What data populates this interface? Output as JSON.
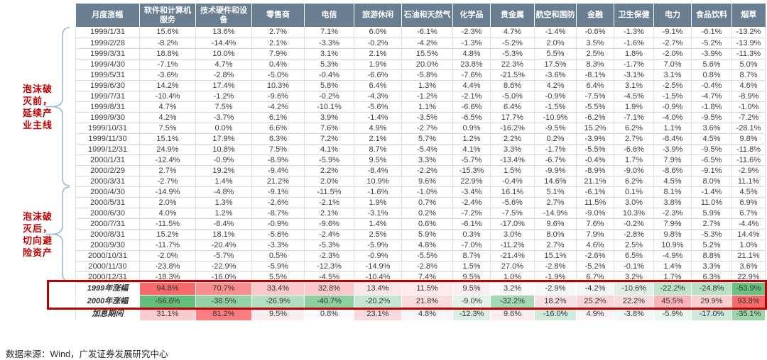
{
  "chart_data": {
    "type": "table",
    "columns": [
      "月度涨幅",
      "软件和计算机服务",
      "技术硬件和设备",
      "零售商",
      "电信",
      "旅游休闲",
      "石油和天然气",
      "化学品",
      "贵金属",
      "航空和国防",
      "金融",
      "卫生保健",
      "电力",
      "食品饮料",
      "烟草"
    ],
    "value_format": "percent_one_decimal",
    "rows": [
      {
        "label": "1999/1/31",
        "values": [
          15.6,
          13.6,
          2.7,
          7.1,
          6.0,
          -6.1,
          -2.3,
          4.7,
          -1.4,
          -0.6,
          -1.3,
          -9.1,
          -6.1,
          -13.2
        ]
      },
      {
        "label": "1999/2/28",
        "values": [
          -8.2,
          -14.4,
          2.1,
          -3.3,
          -0.2,
          -4.2,
          -1.3,
          -5.2,
          2.0,
          3.5,
          -1.6,
          -2.7,
          -5.2,
          -13.9
        ]
      },
      {
        "label": "1999/3/31",
        "values": [
          18.8,
          10.0,
          7.9,
          3.1,
          2.1,
          15.5,
          4.8,
          -5.3,
          5.5,
          2.5,
          1.8,
          -2.0,
          -3.9,
          -11.3
        ]
      },
      {
        "label": "1999/4/30",
        "values": [
          -7.1,
          4.7,
          0.4,
          5.3,
          1.9,
          20.0,
          23.8,
          22.3,
          17.5,
          8.3,
          -1.7,
          7.0,
          5.6,
          5.0
        ]
      },
      {
        "label": "1999/5/31",
        "values": [
          -3.6,
          -2.8,
          -5.0,
          -0.4,
          -6.6,
          -5.8,
          -7.6,
          -21.5,
          -3.6,
          -8.1,
          -3.1,
          3.1,
          0.8,
          8.7
        ]
      },
      {
        "label": "1999/6/30",
        "values": [
          14.2,
          17.4,
          10.3,
          5.8,
          6.4,
          1.3,
          4.4,
          8.6,
          4.2,
          6.4,
          3.1,
          -2.5,
          -0.4,
          4.6
        ]
      },
      {
        "label": "1999/7/31",
        "values": [
          -10.4,
          -1.2,
          -9.6,
          -0.2,
          -4.3,
          -1.2,
          -2.1,
          -5.0,
          -0.9,
          -7.5,
          -4.5,
          -1.5,
          -4.7,
          -8.9
        ]
      },
      {
        "label": "1999/8/31",
        "values": [
          4.7,
          7.5,
          -4.2,
          -10.1,
          -5.6,
          1.1,
          -6.6,
          6.4,
          -1.5,
          -5.5,
          1.9,
          -0.9,
          -1.8,
          -1.0
        ]
      },
      {
        "label": "1999/9/30",
        "values": [
          4.2,
          -3.7,
          6.1,
          3.9,
          -1.4,
          -3.5,
          -6.5,
          17.7,
          -10.9,
          -6.2,
          -7.1,
          -4.0,
          -9.5,
          -7.2
        ]
      },
      {
        "label": "1999/10/31",
        "values": [
          7.5,
          0.0,
          6.6,
          7.6,
          4.9,
          -2.7,
          0.9,
          -16.2,
          -9.5,
          15.2,
          6.2,
          1.1,
          3.6,
          -28.1
        ]
      },
      {
        "label": "1999/11/30",
        "values": [
          15.1,
          17.9,
          6.3,
          7.2,
          2.1,
          5.7,
          1.2,
          2.2,
          0.2,
          -3.9,
          2.7,
          -8.4,
          4.5,
          9.8
        ]
      },
      {
        "label": "1999/12/31",
        "values": [
          24.9,
          10.8,
          7.5,
          4.1,
          8.7,
          -5.4,
          4.1,
          3.3,
          -1.7,
          -5.5,
          -6.6,
          -3.9,
          -9.5,
          -11.8
        ]
      },
      {
        "label": "2000/1/31",
        "values": [
          -12.4,
          -0.9,
          -8.9,
          -5.9,
          9.5,
          3.3,
          -5.7,
          -13.4,
          -6.7,
          -0.4,
          1.7,
          7.9,
          -6.5,
          -11.6
        ]
      },
      {
        "label": "2000/2/29",
        "values": [
          2.7,
          19.2,
          -9.4,
          2.2,
          -8.4,
          -2.2,
          -15.3,
          1.5,
          -9.9,
          -8.9,
          -9.0,
          -8.6,
          -9.1,
          -2.9
        ]
      },
      {
        "label": "2000/3/31",
        "values": [
          -2.7,
          1.4,
          21.2,
          2.0,
          10.9,
          9.6,
          22.9,
          -0.4,
          14.6,
          21.1,
          6.2,
          4.5,
          8.0,
          11.1
        ]
      },
      {
        "label": "2000/4/30",
        "values": [
          -14.9,
          -4.8,
          -9.1,
          -11.5,
          -1.6,
          -1.0,
          -3.4,
          16.1,
          5.1,
          -6.1,
          0.1,
          8.1,
          -1.4,
          4.5
        ]
      },
      {
        "label": "2000/5/31",
        "values": [
          2.0,
          1.3,
          -2.6,
          -2.1,
          1.9,
          0.7,
          -2.4,
          -5.6,
          2.7,
          11.5,
          3.0,
          3.8,
          11.0,
          6.9
        ]
      },
      {
        "label": "2000/6/30",
        "values": [
          4.0,
          1.2,
          -8.7,
          2.1,
          -3.1,
          0.2,
          -7.2,
          -7.5,
          -14.9,
          -9.0,
          10.3,
          -2.3,
          5.9,
          6.7
        ]
      },
      {
        "label": "2000/7/31",
        "values": [
          -11.5,
          -8.4,
          -0.9,
          -9.6,
          1.4,
          0.6,
          -6.1,
          -17.0,
          9.6,
          7.6,
          -0.2,
          7.9,
          2.7,
          -4.4
        ]
      },
      {
        "label": "2000/8/31",
        "values": [
          15.2,
          18.1,
          -5.6,
          -2.4,
          2.5,
          5.9,
          0.3,
          3.0,
          8.0,
          7.9,
          -2.8,
          9.8,
          -5.3,
          14.4
        ]
      },
      {
        "label": "2000/9/30",
        "values": [
          -11.7,
          -20.4,
          -3.3,
          -5.3,
          -5.9,
          4.8,
          -7.0,
          -11.2,
          2.7,
          4.6,
          2.5,
          10.9,
          5.2,
          1.0
        ]
      },
      {
        "label": "2000/10/31",
        "values": [
          -2.0,
          -5.7,
          0.5,
          -2.3,
          -0.9,
          -5.5,
          8.7,
          -21.4,
          15.1,
          -2.6,
          6.5,
          -4.9,
          8.8,
          21.1
        ]
      },
      {
        "label": "2000/11/30",
        "values": [
          -23.8,
          -22.9,
          -5.9,
          -12.3,
          -14.9,
          -2.8,
          1.5,
          27.0,
          -2.8,
          -5.2,
          -0.1,
          1.4,
          3.3,
          3.6
        ]
      },
      {
        "label": "2000/12/31",
        "values": [
          -18.3,
          -16.0,
          5.5,
          -4.5,
          -10.4,
          7.4,
          9.5,
          1.0,
          -1.9,
          6.7,
          3.2,
          1.7,
          6.3,
          22.9
        ]
      }
    ],
    "summary_rows": [
      {
        "label": "1999年涨幅",
        "values": [
          94.8,
          70.7,
          33.4,
          32.8,
          13.4,
          11.5,
          9.5,
          3.2,
          -2.9,
          -4.2,
          -10.6,
          -22.2,
          -24.8,
          -53.9
        ]
      },
      {
        "label": "2000年涨幅",
        "values": [
          -56.6,
          -38.5,
          -26.9,
          -40.7,
          -20.2,
          21.8,
          -9.0,
          -32.2,
          18.2,
          25.2,
          22.2,
          45.5,
          29.9,
          93.8
        ]
      },
      {
        "label": "加息期间",
        "values": [
          31.1,
          81.2,
          9.5,
          0.8,
          23.1,
          4.8,
          -12.3,
          9.6,
          -16.0,
          4.9,
          -3.8,
          -5.9,
          -17.0,
          -35.1
        ]
      }
    ],
    "heatmap": {
      "applies_to": "summary_rows",
      "max": 94.8,
      "min": -56.6,
      "max_color": "#F8696B",
      "mid_color": "#FCFCFF",
      "min_color": "#63BE7B"
    }
  },
  "annotations": [
    {
      "id": "pre-bubble",
      "text": "泡沫破灭前，延续产业主线",
      "lines": [
        "泡沫破",
        "灭前，",
        "延续产",
        "业主线"
      ],
      "row_span": [
        "1999/1/31",
        "2000/3/31"
      ]
    },
    {
      "id": "post-bubble",
      "text": "泡沫破灭后，切向避险资产",
      "lines": [
        "泡沫破",
        "灭后，",
        "切向避",
        "险资产"
      ],
      "row_span": [
        "2000/4/30",
        "2000/12/31"
      ]
    }
  ],
  "highlight_box": {
    "rows": [
      "1999年涨幅",
      "2000年涨幅"
    ],
    "color": "#C00000"
  },
  "footer": {
    "source": "数据来源：Wind，广发证券发展研究中心"
  },
  "colors": {
    "background": "#FFFFFF",
    "header_bg": "#6A7E91",
    "header_text": "#FFFFFF",
    "grid": "#D8D8D8",
    "grid_light": "#E2E2E2",
    "body_text": "#3D3D3D",
    "summary_label": "#E60000",
    "annotation": "#C00000",
    "brace": "#95B3D7",
    "box": "#C00000",
    "footer_text": "#262626"
  }
}
